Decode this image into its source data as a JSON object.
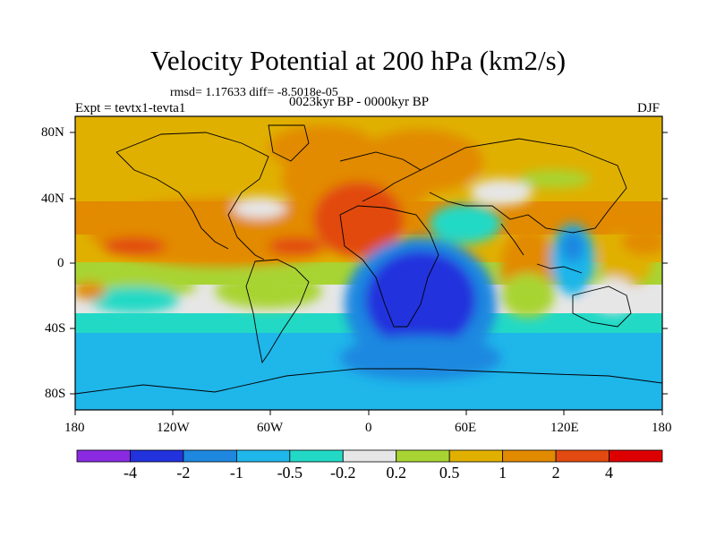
{
  "title": "Velocity Potential at 200 hPa (km2/s)",
  "stats": "rmsd= 1.17633 diff= -8.5018e-05",
  "experiment": "Expt = tevtx1-tevta1",
  "period": "0023kyr BP - 0000kyr BP",
  "season": "DJF",
  "lat_ticks": [
    "80N",
    "40N",
    "0",
    "40S",
    "80S"
  ],
  "lon_ticks": [
    "180",
    "120W",
    "60W",
    "0",
    "60E",
    "120E",
    "180"
  ],
  "colorbar": {
    "colors": [
      "#8a2be2",
      "#2232dd",
      "#1e88e0",
      "#1fb6ea",
      "#22d9c6",
      "#e6e6e6",
      "#a8d433",
      "#e0b000",
      "#e28a00",
      "#e24a10",
      "#dd0000"
    ],
    "labels": [
      "-4",
      "-2",
      "-1",
      "-0.5",
      "-0.2",
      "0.2",
      "0.5",
      "1",
      "2",
      "4"
    ]
  }
}
